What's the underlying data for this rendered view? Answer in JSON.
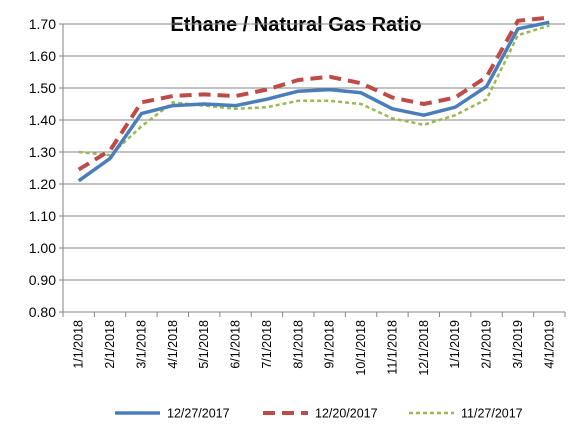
{
  "chart_data": {
    "type": "line",
    "title": "Ethane / Natural Gas Ratio",
    "xlabel": "",
    "ylabel": "",
    "ylim": [
      0.8,
      1.7
    ],
    "yticks": [
      "0.80",
      "0.90",
      "1.00",
      "1.10",
      "1.20",
      "1.30",
      "1.40",
      "1.50",
      "1.60",
      "1.70"
    ],
    "grid": true,
    "legend_position": "bottom",
    "categories": [
      "1/1/2018",
      "2/1/2018",
      "3/1/2018",
      "4/1/2018",
      "5/1/2018",
      "6/1/2018",
      "7/1/2018",
      "8/1/2018",
      "9/1/2018",
      "10/1/2018",
      "11/1/2018",
      "12/1/2018",
      "1/1/2019",
      "2/1/2019",
      "3/1/2019",
      "4/1/2019"
    ],
    "series": [
      {
        "name": "12/27/2017",
        "style": "solid",
        "color": "#4a7ebb",
        "values": [
          1.21,
          1.28,
          1.42,
          1.445,
          1.45,
          1.445,
          1.465,
          1.49,
          1.495,
          1.485,
          1.435,
          1.415,
          1.44,
          1.505,
          1.685,
          1.705
        ]
      },
      {
        "name": "12/20/2017",
        "style": "dashed",
        "color": "#be4b48",
        "values": [
          1.245,
          1.305,
          1.455,
          1.475,
          1.48,
          1.475,
          1.495,
          1.525,
          1.535,
          1.515,
          1.47,
          1.45,
          1.47,
          1.535,
          1.71,
          1.72
        ]
      },
      {
        "name": "11/27/2017",
        "style": "dotted",
        "color": "#98b954",
        "values": [
          1.3,
          1.29,
          1.38,
          1.455,
          1.445,
          1.435,
          1.44,
          1.46,
          1.46,
          1.45,
          1.405,
          1.385,
          1.415,
          1.465,
          1.665,
          1.695
        ]
      }
    ]
  }
}
